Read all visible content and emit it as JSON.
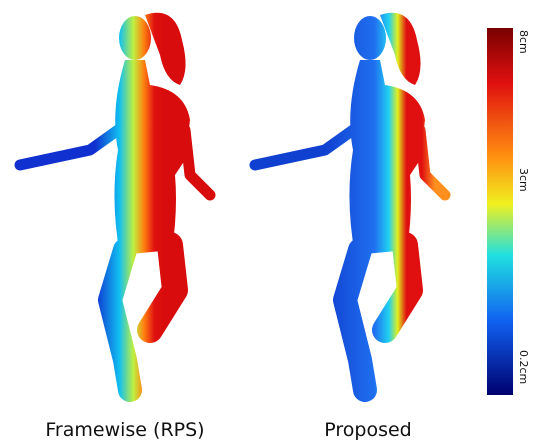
{
  "figure": {
    "panels": [
      {
        "caption": "Framewise (RPS)"
      },
      {
        "caption": "Proposed"
      }
    ],
    "colorbar": {
      "labels": [
        "8cm",
        "3cm",
        "0.2cm"
      ]
    }
  }
}
